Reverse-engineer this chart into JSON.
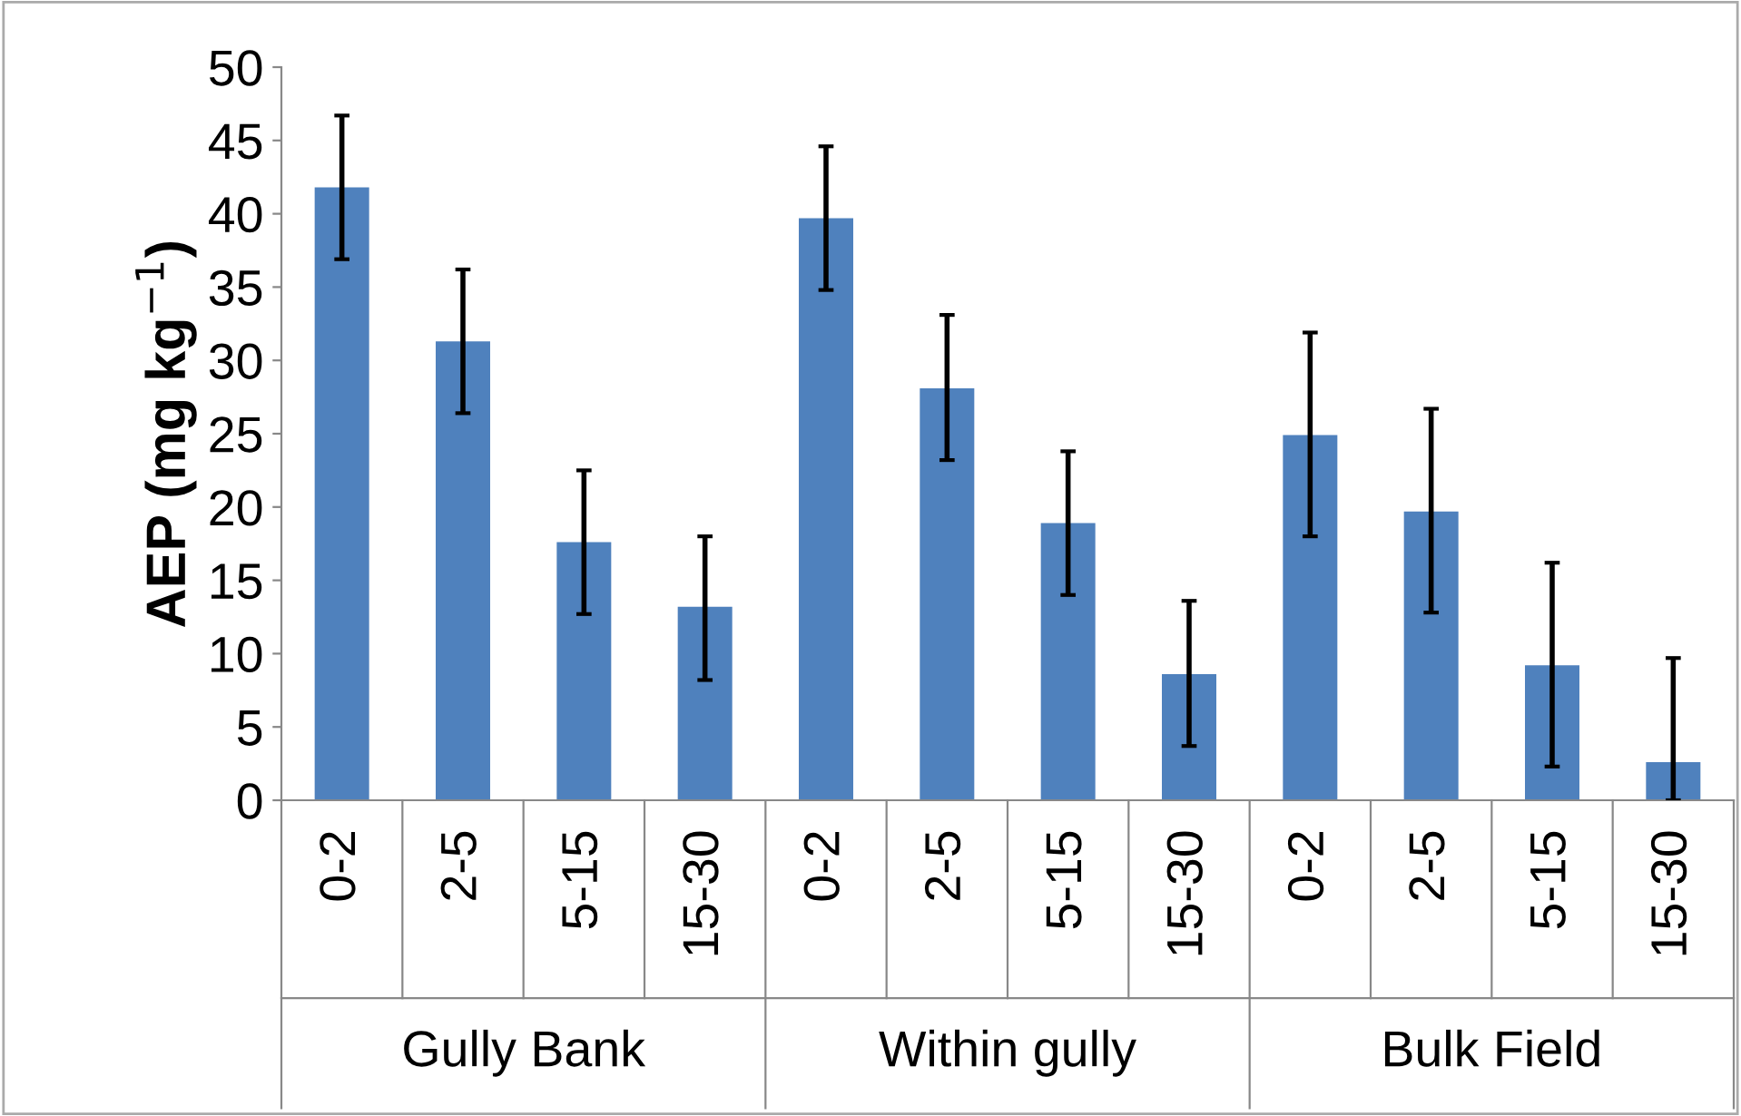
{
  "chart_data": {
    "type": "bar",
    "ylabel": "AEP (mg kg$^{−1}$)",
    "categories": [
      "0-2",
      "2-5",
      "5-15",
      "15-30",
      "0-2",
      "2-5",
      "5-15",
      "15-30",
      "0-2",
      "2-5",
      "5-15",
      "15-30"
    ],
    "values": [
      41.8,
      31.3,
      17.6,
      13.2,
      39.7,
      28.1,
      18.9,
      8.6,
      24.9,
      19.7,
      9.2,
      2.6
    ],
    "errors": [
      [
        36.9,
        46.7
      ],
      [
        26.4,
        36.2
      ],
      [
        12.7,
        22.5
      ],
      [
        8.2,
        18.0
      ],
      [
        34.8,
        44.6
      ],
      [
        23.2,
        33.1
      ],
      [
        14.0,
        23.8
      ],
      [
        3.7,
        13.6
      ],
      [
        18.0,
        31.9
      ],
      [
        12.8,
        26.7
      ],
      [
        2.3,
        16.2
      ],
      [
        0,
        9.7
      ]
    ],
    "color": "#4f81bd",
    "annotations": [
      "Gully Bank",
      "Within gully",
      "Bulk Field"
    ],
    "ylim": [
      0,
      50
    ],
    "yticks": [
      0,
      5,
      10,
      15,
      20,
      25,
      30,
      35,
      40,
      45,
      50
    ],
    "grid": false,
    "legend": false
  }
}
